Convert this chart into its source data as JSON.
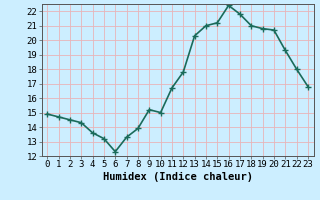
{
  "x": [
    0,
    1,
    2,
    3,
    4,
    5,
    6,
    7,
    8,
    9,
    10,
    11,
    12,
    13,
    14,
    15,
    16,
    17,
    18,
    19,
    20,
    21,
    22,
    23
  ],
  "y": [
    14.9,
    14.7,
    14.5,
    14.3,
    13.6,
    13.2,
    12.3,
    13.3,
    13.9,
    15.2,
    15.0,
    16.7,
    17.8,
    20.3,
    21.0,
    21.2,
    22.4,
    21.8,
    21.0,
    20.8,
    20.7,
    19.3,
    18.0,
    16.8
  ],
  "line_color": "#1a6b5a",
  "marker": "+",
  "marker_size": 4,
  "bg_color": "#cceeff",
  "grid_color": "#e8b4b8",
  "xlabel": "Humidex (Indice chaleur)",
  "xlim": [
    -0.5,
    23.5
  ],
  "ylim": [
    12,
    22.5
  ],
  "yticks": [
    12,
    13,
    14,
    15,
    16,
    17,
    18,
    19,
    20,
    21,
    22
  ],
  "xticks": [
    0,
    1,
    2,
    3,
    4,
    5,
    6,
    7,
    8,
    9,
    10,
    11,
    12,
    13,
    14,
    15,
    16,
    17,
    18,
    19,
    20,
    21,
    22,
    23
  ],
  "xtick_labels": [
    "0",
    "1",
    "2",
    "3",
    "4",
    "5",
    "6",
    "7",
    "8",
    "9",
    "10",
    "11",
    "12",
    "13",
    "14",
    "15",
    "16",
    "17",
    "18",
    "19",
    "20",
    "21",
    "22",
    "23"
  ],
  "xlabel_fontsize": 7.5,
  "tick_fontsize": 6.5,
  "linewidth": 1.2
}
